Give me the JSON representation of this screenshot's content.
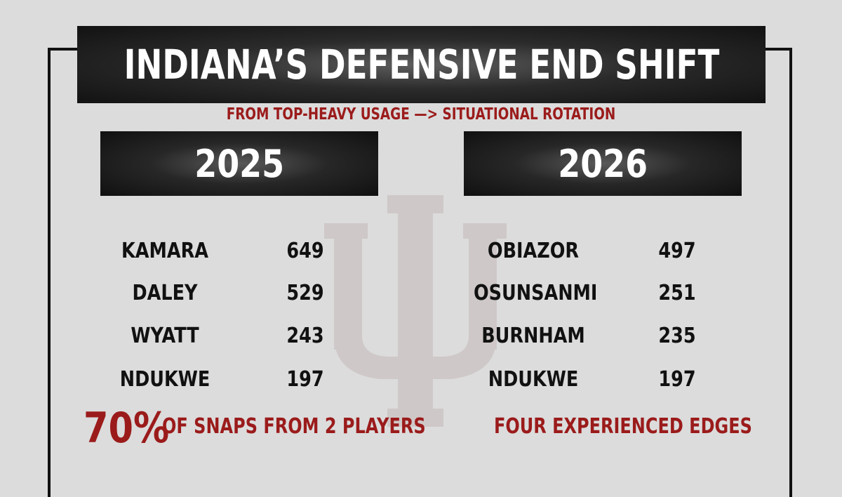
{
  "title": "INDIANA’S DEFENSIVE END SHIFT",
  "subtitle": "FROM TOP-HEAVY USAGE —> SITUATIONAL ROTATION",
  "left": {
    "year": "2025",
    "players": [
      {
        "name": "KAMARA",
        "snaps": "649"
      },
      {
        "name": "DALEY",
        "snaps": "529"
      },
      {
        "name": "WYATT",
        "snaps": "243"
      },
      {
        "name": "NDUKWE",
        "snaps": "197"
      }
    ],
    "highlight_pct": "70%",
    "note": "OF SNAPS FROM 2 PLAYERS"
  },
  "right": {
    "year": "2026",
    "players": [
      {
        "name": "OBIAZOR",
        "snaps": "497"
      },
      {
        "name": "OSUNSANMI",
        "snaps": "251"
      },
      {
        "name": "BURNHAM",
        "snaps": "235"
      },
      {
        "name": "NDUKWE",
        "snaps": "197"
      }
    ],
    "note": "FOUR EXPERIENCED EDGES"
  },
  "colors": {
    "accent": "#9b1b1b",
    "background": "#dcdcdc",
    "bar": "#1a1a1a",
    "logo": "#cfc8c8"
  },
  "logo_icon": "iu-trident-logo"
}
